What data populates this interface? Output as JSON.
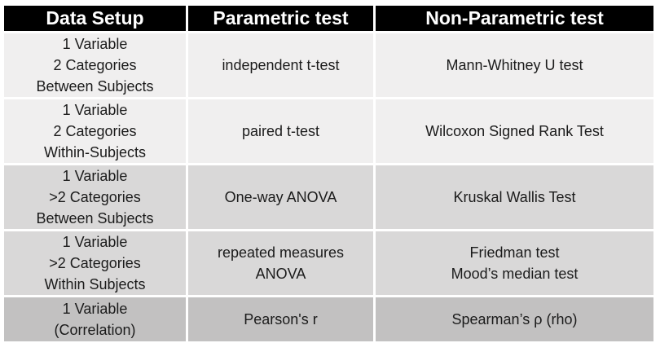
{
  "table": {
    "columns": [
      {
        "label": "Data Setup"
      },
      {
        "label": "Parametric test"
      },
      {
        "label": "Non-Parametric test"
      }
    ],
    "rows": [
      {
        "setup": [
          "1 Variable",
          "2 Categories",
          "Between Subjects"
        ],
        "parametric": [
          "independent t-test"
        ],
        "nonparametric": [
          "Mann-Whitney U test"
        ],
        "shade_class": "row-tall shade-light"
      },
      {
        "setup": [
          "1 Variable",
          "2 Categories",
          "Within-Subjects"
        ],
        "parametric": [
          "paired t-test"
        ],
        "nonparametric": [
          "Wilcoxon Signed Rank Test"
        ],
        "shade_class": "row-tall shade-light"
      },
      {
        "setup": [
          "1 Variable",
          ">2 Categories",
          "Between Subjects"
        ],
        "parametric": [
          "One-way ANOVA"
        ],
        "nonparametric": [
          "Kruskal Wallis Test"
        ],
        "shade_class": "row-tall shade-medium"
      },
      {
        "setup": [
          "1 Variable",
          ">2 Categories",
          "Within Subjects"
        ],
        "parametric": [
          "repeated measures",
          "ANOVA"
        ],
        "nonparametric": [
          "Friedman test",
          "Mood’s median test"
        ],
        "shade_class": "row-tall shade-medium"
      },
      {
        "setup": [
          "1 Variable",
          "(Correlation)"
        ],
        "parametric": [
          "Pearson's r"
        ],
        "nonparametric": [
          "Spearman’s ρ (rho)"
        ],
        "shade_class": "row-short shade-dark"
      }
    ],
    "colors": {
      "header_bg": "#000000",
      "header_text": "#ffffff",
      "row_light": "#f0efef",
      "row_medium": "#d9d8d8",
      "row_dark": "#c2c1c1",
      "border": "#ffffff",
      "body_text": "#1b1b1b"
    }
  }
}
